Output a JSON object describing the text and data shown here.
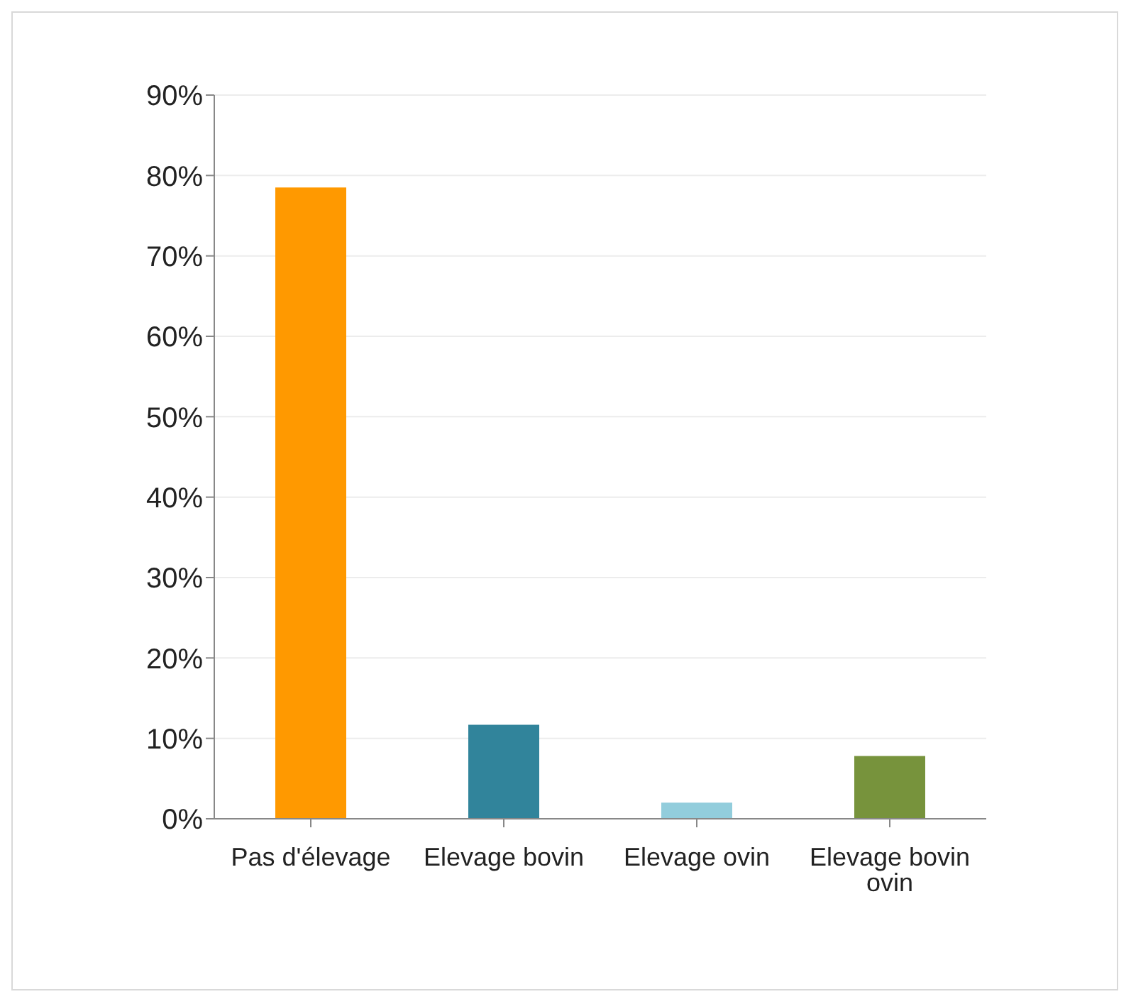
{
  "chart_data": {
    "type": "bar",
    "categories": [
      "Pas d'élevage",
      "Elevage bovin",
      "Elevage ovin",
      "Elevage bovin ovin"
    ],
    "values": [
      78.5,
      11.7,
      2,
      7.8
    ],
    "colors": [
      "#ff9900",
      "#31849b",
      "#92cddc",
      "#77933c"
    ],
    "ylim": [
      0,
      90
    ],
    "yticks": [
      {
        "value": 0,
        "label": "0%"
      },
      {
        "value": 10,
        "label": "10%"
      },
      {
        "value": 20,
        "label": "20%"
      },
      {
        "value": 30,
        "label": "30%"
      },
      {
        "value": 40,
        "label": "40%"
      },
      {
        "value": 50,
        "label": "50%"
      },
      {
        "value": 60,
        "label": "60%"
      },
      {
        "value": 70,
        "label": "70%"
      },
      {
        "value": 80,
        "label": "80%"
      },
      {
        "value": 90,
        "label": "90%"
      }
    ],
    "grid": "y",
    "legend": false
  }
}
